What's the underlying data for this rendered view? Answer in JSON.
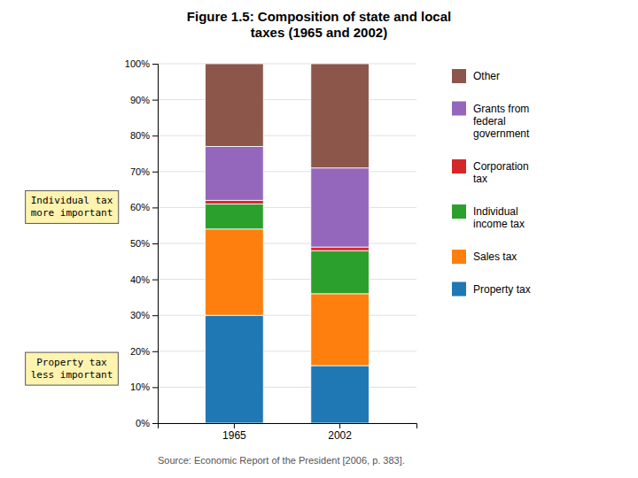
{
  "chart_data": {
    "type": "bar",
    "stacked": true,
    "title": "Figure 1.5: Composition of state and local\ntaxes (1965 and 2002)",
    "categories": [
      "1965",
      "2002"
    ],
    "series": [
      {
        "name": "Property tax",
        "values": [
          30,
          16
        ]
      },
      {
        "name": "Sales tax",
        "values": [
          24,
          20
        ]
      },
      {
        "name": "Individual\nincome tax",
        "values": [
          7,
          12
        ]
      },
      {
        "name": "Corporation\ntax",
        "values": [
          1,
          1
        ]
      },
      {
        "name": "Grants from\nfederal\ngovernment",
        "values": [
          15,
          22
        ]
      },
      {
        "name": "Other",
        "values": [
          23,
          29
        ]
      }
    ],
    "ylim": [
      0,
      100
    ],
    "yticks": [
      {
        "value": 0,
        "label": "0%"
      },
      {
        "value": 10,
        "label": "10%"
      },
      {
        "value": 20,
        "label": "20%"
      },
      {
        "value": 30,
        "label": "30%"
      },
      {
        "value": 40,
        "label": "40%"
      },
      {
        "value": 50,
        "label": "50%"
      },
      {
        "value": 60,
        "label": "60%"
      },
      {
        "value": 70,
        "label": "70%"
      },
      {
        "value": 80,
        "label": "80%"
      },
      {
        "value": 90,
        "label": "90%"
      },
      {
        "value": 100,
        "label": "100%"
      }
    ],
    "grid": true,
    "legend": "right",
    "annotations": [
      "Individual tax\nmore important",
      "Property tax\nless important",
      "Source: Economic Report of the President [2006, p. 383]."
    ]
  }
}
